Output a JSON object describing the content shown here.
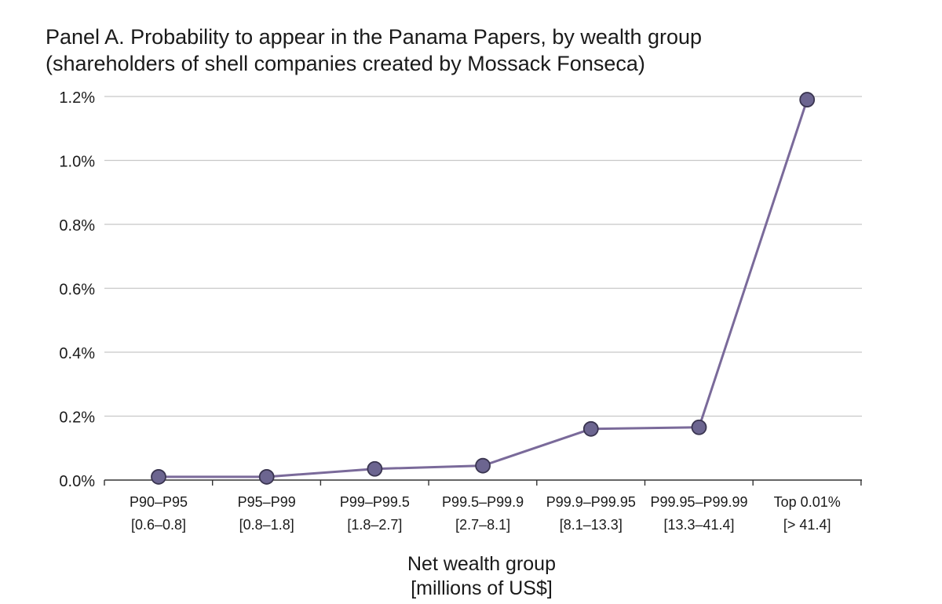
{
  "chart_data": {
    "type": "line",
    "title": "Panel A. Probability to appear in the Panama Papers, by wealth group",
    "subtitle": "(shareholders of shell companies created by Mossack Fonseca)",
    "xlabel": "Net wealth group",
    "xlabel_line2": "[millions of US$]",
    "ylabel": "",
    "categories": [
      "P90–P95",
      "P95–P99",
      "P99–P99.5",
      "P99.5–P99.9",
      "P99.9–P99.95",
      "P99.95–P99.99",
      "Top 0.01%"
    ],
    "category_ranges": [
      "[0.6–0.8]",
      "[0.8–1.8]",
      "[1.8–2.7]",
      "[2.7–8.1]",
      "[8.1–13.3]",
      "[13.3–41.4]",
      "[> 41.4]"
    ],
    "values": [
      0.0001,
      0.0001,
      0.00035,
      0.00045,
      0.0016,
      0.00165,
      0.0119
    ],
    "ylim": [
      0,
      0.012
    ],
    "yticks": [
      0,
      0.002,
      0.004,
      0.006,
      0.008,
      0.01,
      0.012
    ],
    "ytick_labels": [
      "0.0%",
      "0.2%",
      "0.4%",
      "0.6%",
      "0.8%",
      "1.0%",
      "1.2%"
    ],
    "grid": true,
    "line_color": "#7a6a9a",
    "marker_color": "#6c6590",
    "grid_color": "#c8c8c8"
  }
}
